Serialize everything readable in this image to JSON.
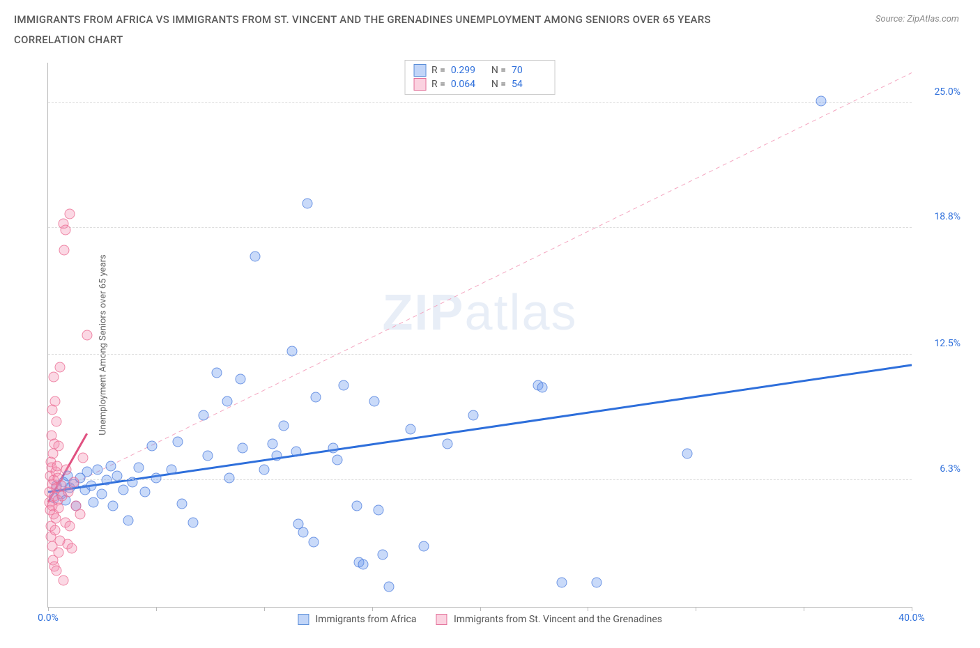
{
  "header": {
    "title": "IMMIGRANTS FROM AFRICA VS IMMIGRANTS FROM ST. VINCENT AND THE GRENADINES UNEMPLOYMENT AMONG SENIORS OVER 65 YEARS CORRELATION CHART",
    "source": "Source: ZipAtlas.com"
  },
  "chart": {
    "type": "scatter",
    "ylabel": "Unemployment Among Seniors over 65 years",
    "xlim": [
      0,
      40
    ],
    "ylim": [
      0,
      27
    ],
    "xtick_positions": [
      0,
      5,
      10,
      15,
      20,
      25,
      30,
      35,
      40
    ],
    "xtick_labels": {
      "0": "0.0%",
      "40": "40.0%"
    },
    "ytick_positions": [
      6.3,
      12.5,
      18.8,
      25.0
    ],
    "ytick_labels": [
      "6.3%",
      "12.5%",
      "18.8%",
      "25.0%"
    ],
    "background_color": "#ffffff",
    "grid_color": "#dddddd",
    "axis_color": "#bbbbbb",
    "marker_size": 15,
    "series": [
      {
        "name": "Immigrants from Africa",
        "color_fill": "rgba(100,150,237,0.35)",
        "color_stroke": "#5b8ed8",
        "R": "0.299",
        "N": "70",
        "trend": {
          "x1": 0,
          "y1": 5.7,
          "x2": 40,
          "y2": 12.0,
          "color": "#2e6fdb",
          "width": 3,
          "dash": "none",
          "extrap": {
            "x1": 0,
            "y1": 5.5,
            "x2": 40,
            "y2": 26.5,
            "color": "#f4a6c0",
            "width": 1,
            "dash": "6,5"
          }
        },
        "points": [
          [
            0.3,
            5.4
          ],
          [
            0.4,
            6.0
          ],
          [
            0.6,
            5.6
          ],
          [
            0.7,
            6.2
          ],
          [
            0.8,
            5.3
          ],
          [
            0.9,
            6.5
          ],
          [
            1.0,
            5.9
          ],
          [
            1.2,
            6.1
          ],
          [
            1.3,
            5.0
          ],
          [
            1.5,
            6.4
          ],
          [
            1.7,
            5.8
          ],
          [
            1.8,
            6.7
          ],
          [
            2.0,
            6.0
          ],
          [
            2.1,
            5.2
          ],
          [
            2.3,
            6.8
          ],
          [
            2.5,
            5.6
          ],
          [
            2.7,
            6.3
          ],
          [
            2.9,
            7.0
          ],
          [
            3.0,
            5.0
          ],
          [
            3.2,
            6.5
          ],
          [
            3.5,
            5.8
          ],
          [
            3.7,
            4.3
          ],
          [
            3.9,
            6.2
          ],
          [
            4.2,
            6.9
          ],
          [
            4.5,
            5.7
          ],
          [
            4.8,
            8.0
          ],
          [
            5.0,
            6.4
          ],
          [
            5.7,
            6.8
          ],
          [
            6.0,
            8.2
          ],
          [
            6.2,
            5.1
          ],
          [
            6.7,
            4.2
          ],
          [
            7.2,
            9.5
          ],
          [
            7.4,
            7.5
          ],
          [
            7.8,
            11.6
          ],
          [
            8.3,
            10.2
          ],
          [
            8.4,
            6.4
          ],
          [
            8.9,
            11.3
          ],
          [
            9.0,
            7.9
          ],
          [
            9.6,
            17.4
          ],
          [
            10.0,
            6.8
          ],
          [
            10.4,
            8.1
          ],
          [
            10.6,
            7.5
          ],
          [
            10.9,
            9.0
          ],
          [
            11.3,
            12.7
          ],
          [
            11.5,
            7.7
          ],
          [
            11.6,
            4.1
          ],
          [
            11.8,
            3.7
          ],
          [
            12.0,
            20.0
          ],
          [
            12.4,
            10.4
          ],
          [
            12.3,
            3.2
          ],
          [
            13.2,
            7.9
          ],
          [
            13.4,
            7.3
          ],
          [
            13.7,
            11.0
          ],
          [
            14.3,
            5.0
          ],
          [
            14.4,
            2.2
          ],
          [
            14.6,
            2.1
          ],
          [
            15.1,
            10.2
          ],
          [
            15.3,
            4.8
          ],
          [
            15.5,
            2.6
          ],
          [
            15.8,
            1.0
          ],
          [
            16.8,
            8.8
          ],
          [
            17.4,
            3.0
          ],
          [
            18.5,
            8.1
          ],
          [
            19.7,
            9.5
          ],
          [
            22.7,
            11.0
          ],
          [
            22.9,
            10.9
          ],
          [
            23.8,
            1.2
          ],
          [
            25.4,
            1.2
          ],
          [
            29.6,
            7.6
          ],
          [
            35.8,
            25.1
          ]
        ]
      },
      {
        "name": "Immigrants from St. Vincent and the Grenadines",
        "color_fill": "rgba(244,143,177,0.35)",
        "color_stroke": "#e27099",
        "R": "0.064",
        "N": "54",
        "trend": {
          "x1": 0,
          "y1": 5.2,
          "x2": 1.8,
          "y2": 8.6,
          "color": "#e05080",
          "width": 3,
          "dash": "none"
        },
        "points": [
          [
            0.05,
            5.2
          ],
          [
            0.08,
            5.7
          ],
          [
            0.1,
            4.8
          ],
          [
            0.1,
            6.5
          ],
          [
            0.12,
            7.2
          ],
          [
            0.12,
            4.0
          ],
          [
            0.14,
            3.5
          ],
          [
            0.15,
            6.9
          ],
          [
            0.15,
            8.5
          ],
          [
            0.18,
            3.0
          ],
          [
            0.18,
            9.8
          ],
          [
            0.2,
            5.0
          ],
          [
            0.2,
            6.1
          ],
          [
            0.22,
            7.6
          ],
          [
            0.22,
            2.3
          ],
          [
            0.25,
            11.4
          ],
          [
            0.25,
            4.6
          ],
          [
            0.27,
            6.3
          ],
          [
            0.28,
            5.5
          ],
          [
            0.3,
            8.1
          ],
          [
            0.3,
            2.0
          ],
          [
            0.32,
            3.8
          ],
          [
            0.33,
            10.2
          ],
          [
            0.35,
            6.7
          ],
          [
            0.35,
            4.4
          ],
          [
            0.38,
            5.9
          ],
          [
            0.4,
            1.8
          ],
          [
            0.4,
            9.2
          ],
          [
            0.42,
            7.0
          ],
          [
            0.45,
            5.3
          ],
          [
            0.45,
            6.4
          ],
          [
            0.48,
            2.7
          ],
          [
            0.5,
            4.9
          ],
          [
            0.5,
            8.0
          ],
          [
            0.55,
            11.9
          ],
          [
            0.55,
            3.3
          ],
          [
            0.6,
            6.0
          ],
          [
            0.65,
            5.5
          ],
          [
            0.7,
            1.3
          ],
          [
            0.7,
            19.0
          ],
          [
            0.75,
            17.7
          ],
          [
            0.8,
            18.7
          ],
          [
            0.8,
            4.2
          ],
          [
            0.85,
            6.8
          ],
          [
            0.9,
            3.1
          ],
          [
            0.95,
            5.7
          ],
          [
            1.0,
            19.5
          ],
          [
            1.0,
            4.0
          ],
          [
            1.1,
            2.9
          ],
          [
            1.2,
            6.2
          ],
          [
            1.3,
            5.0
          ],
          [
            1.5,
            4.6
          ],
          [
            1.8,
            13.5
          ],
          [
            1.6,
            7.4
          ]
        ]
      }
    ],
    "legend_bottom": [
      {
        "swatch": "blue",
        "label": "Immigrants from Africa"
      },
      {
        "swatch": "pink",
        "label": "Immigrants from St. Vincent and the Grenadines"
      }
    ],
    "watermark": {
      "zip": "ZIP",
      "atlas": "atlas"
    }
  }
}
